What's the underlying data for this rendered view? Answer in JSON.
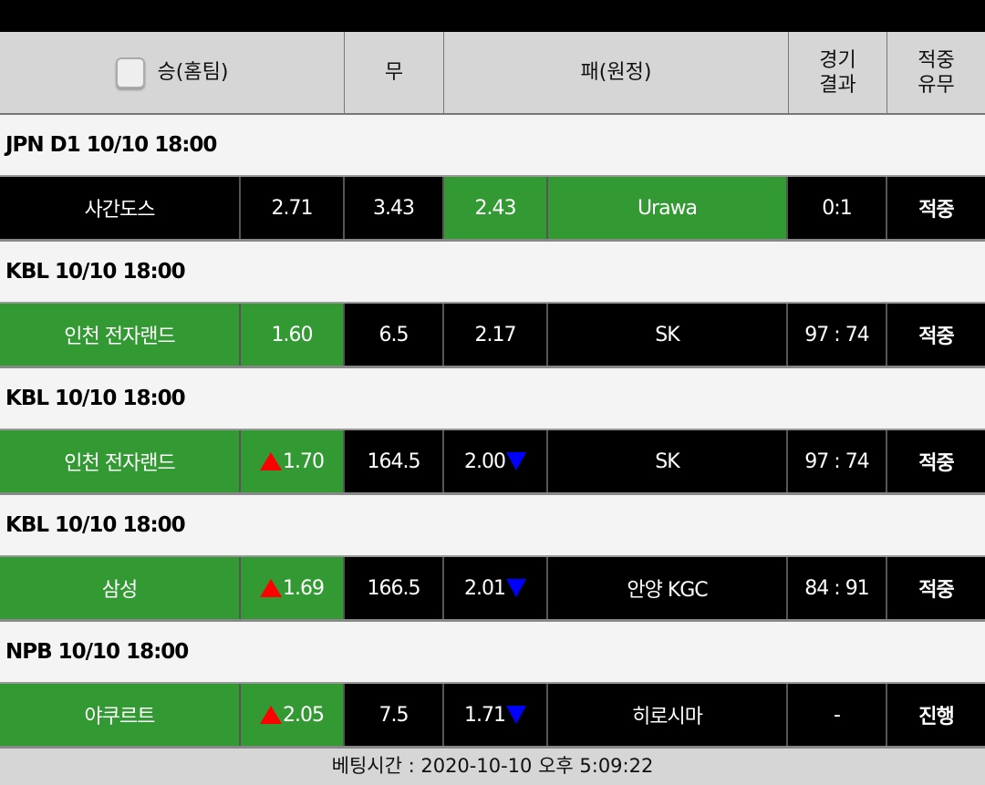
{
  "header": {
    "home": "승(홈팀)",
    "draw": "무",
    "away": "패(원정)",
    "result": "경기\n결과",
    "hit": "적중\n유무"
  },
  "colors": {
    "win_highlight": "#339933",
    "hit": "#ffff33",
    "in_progress": "#33dd66",
    "odds_up": "#ff0000",
    "odds_down": "#0000ff"
  },
  "games": [
    {
      "league": "JPN D1 10/10 18:00",
      "home": "사간도스",
      "home_odds": "2.71",
      "home_arrow": "",
      "draw": "3.43",
      "away_odds": "2.43",
      "away_arrow": "",
      "away": "Urawa",
      "result": "0:1",
      "status": "적중",
      "pick": "away"
    },
    {
      "league": "KBL 10/10 18:00",
      "home": "인천 전자랜드",
      "home_odds": "1.60",
      "home_arrow": "",
      "draw": "6.5",
      "away_odds": "2.17",
      "away_arrow": "",
      "away": "SK",
      "result": "97 : 74",
      "status": "적중",
      "pick": "home"
    },
    {
      "league": "KBL 10/10 18:00",
      "home": "인천 전자랜드",
      "home_odds": "1.70",
      "home_arrow": "up",
      "draw": "164.5",
      "away_odds": "2.00",
      "away_arrow": "down",
      "away": "SK",
      "result": "97 : 74",
      "status": "적중",
      "pick": "home"
    },
    {
      "league": "KBL 10/10 18:00",
      "home": "삼성",
      "home_odds": "1.69",
      "home_arrow": "up",
      "draw": "166.5",
      "away_odds": "2.01",
      "away_arrow": "down",
      "away": "안양 KGC",
      "result": "84 : 91",
      "status": "적중",
      "pick": "home"
    },
    {
      "league": "NPB 10/10 18:00",
      "home": "야쿠르트",
      "home_odds": "2.05",
      "home_arrow": "up",
      "draw": "7.5",
      "away_odds": "1.71",
      "away_arrow": "down",
      "away": "히로시마",
      "result": "-",
      "status": "진행",
      "pick": "home"
    }
  ],
  "footer": "베팅시간 : 2020-10-10 오후 5:09:22"
}
